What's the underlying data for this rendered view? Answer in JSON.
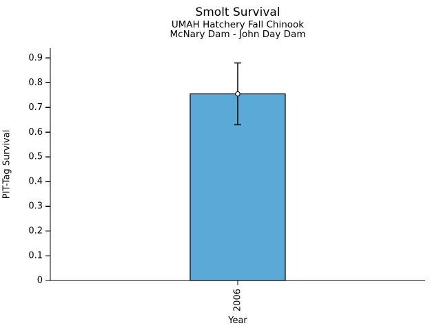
{
  "chart_data": {
    "type": "bar",
    "title": "Smolt Survival",
    "subtitle_lines": [
      "UMAH Hatchery Fall Chinook",
      "McNary Dam - John Day Dam"
    ],
    "xlabel": "Year",
    "ylabel": "PIT-Tag Survival",
    "categories": [
      "2006"
    ],
    "values": [
      0.755
    ],
    "error_low": [
      0.63
    ],
    "error_high": [
      0.88
    ],
    "yticks": [
      0,
      0.1,
      0.2,
      0.3,
      0.4,
      0.5,
      0.6,
      0.7,
      0.8,
      0.9
    ],
    "ytick_labels": [
      "0",
      "0.1",
      "0.2",
      "0.3",
      "0.4",
      "0.5",
      "0.6",
      "0.7",
      "0.8",
      "0.9"
    ],
    "ylim": [
      0,
      0.94
    ],
    "grid": false,
    "legend": "none",
    "bar_color": "#5BA9D6",
    "bar_edge_color": "#000000",
    "error_bar_color": "#000000",
    "marker": "open-circle",
    "marker_fill": "#ffffff",
    "background_color": "#ffffff"
  }
}
